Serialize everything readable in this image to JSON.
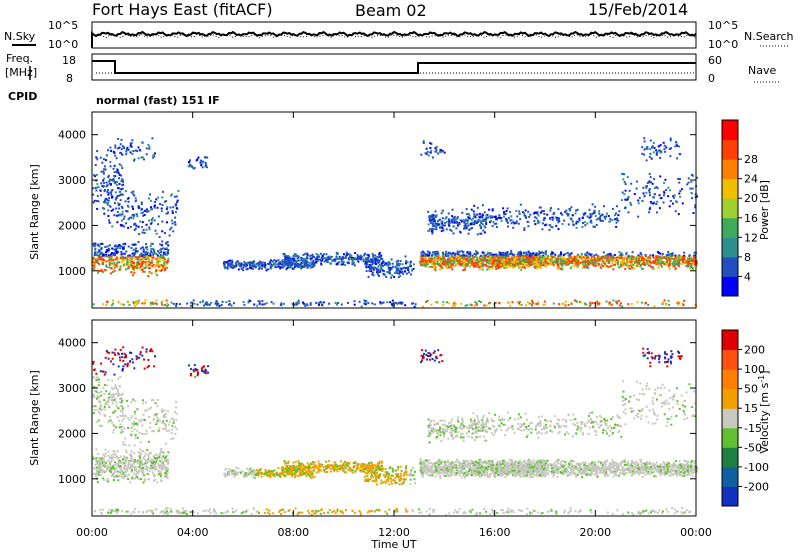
{
  "header": {
    "station": "Fort Hays East (fitACF)",
    "beam": "Beam 02",
    "date": "15/Feb/2014"
  },
  "noise_panel": {
    "left_label": "N.Sky",
    "right_label": "N.Search",
    "left_ticks": [
      "10^5",
      "10^0"
    ],
    "right_ticks": [
      "10^5",
      "10^0"
    ]
  },
  "freq_panel": {
    "left_label_1": "Freq.",
    "left_label_2": "[MHz]",
    "right_label": "Nave",
    "left_ticks": [
      "18",
      "8"
    ],
    "right_ticks": [
      "60",
      "0"
    ]
  },
  "cpid": {
    "label": "CPID",
    "value": "normal (fast) 151 IF"
  },
  "x_axis": {
    "title": "Time UT",
    "ticks": [
      "00:00",
      "04:00",
      "08:00",
      "12:00",
      "16:00",
      "20:00",
      "00:00"
    ]
  },
  "colors": {
    "power": [
      "#0000ff",
      "#2050c0",
      "#2f8f8f",
      "#3faa5a",
      "#a0d030",
      "#f0c000",
      "#ff8000",
      "#ff4000",
      "#ff0000"
    ],
    "velocity": [
      "#1030c0",
      "#1060a0",
      "#208040",
      "#60c030",
      "#c8c8c0",
      "#f0a000",
      "#ff8000",
      "#ff5010",
      "#e00000"
    ]
  },
  "chart_data": [
    {
      "type": "heatmap",
      "title": "",
      "xlabel": "",
      "ylabel": "Slant Range [km]",
      "x_range_hours": [
        0,
        24
      ],
      "ylim": [
        180,
        4500
      ],
      "y_ticks": [
        "1000",
        "2000",
        "3000",
        "4000"
      ],
      "colorbar": {
        "label": "Power [dB]",
        "ticks": [
          "4",
          "8",
          "12",
          "16",
          "20",
          "24",
          "28"
        ]
      }
    },
    {
      "type": "heatmap",
      "title": "",
      "xlabel": "Time UT",
      "ylabel": "Slant Range [km]",
      "x_range_hours": [
        0,
        24
      ],
      "ylim": [
        180,
        4500
      ],
      "y_ticks": [
        "1000",
        "2000",
        "3000",
        "4000"
      ],
      "colorbar": {
        "label_prefix": "Velocity [m s",
        "label_sup": "-1",
        "label_suffix": "]",
        "ticks": [
          "200",
          "100",
          "50",
          "15",
          "-15",
          "-50",
          "-100",
          "-200"
        ]
      }
    }
  ]
}
